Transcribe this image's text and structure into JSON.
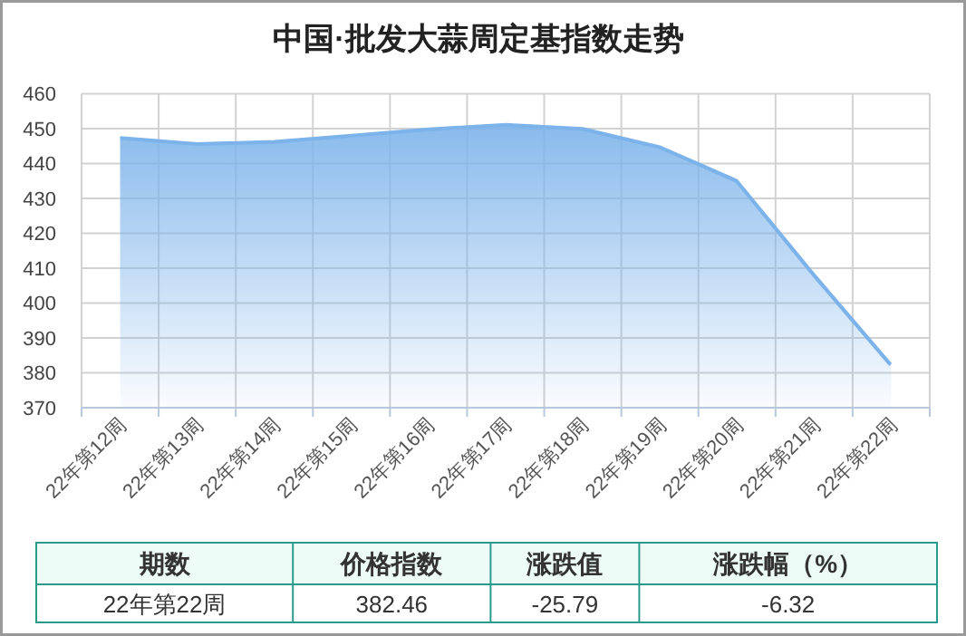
{
  "chart_data": {
    "type": "area",
    "title": "中国·批发大蒜周定基指数走势",
    "categories": [
      "22年第12周",
      "22年第13周",
      "22年第14周",
      "22年第15周",
      "22年第16周",
      "22年第17周",
      "22年第18周",
      "22年第19周",
      "22年第20周",
      "22年第21周",
      "22年第22周"
    ],
    "values": [
      447.5,
      445.8,
      446.4,
      448.2,
      450.0,
      451.3,
      450.1,
      444.9,
      435.2,
      408.3,
      382.46
    ],
    "color": "#7cb3ea",
    "ylim": [
      370,
      460
    ],
    "yticks": [
      370,
      380,
      390,
      400,
      410,
      420,
      430,
      440,
      450,
      460
    ],
    "grid": true,
    "annotations": [
      "期数",
      "价格指数",
      "涨跌值",
      "涨跌幅（%）",
      "22年第22周",
      "382.46",
      "-25.79",
      "-6.32"
    ]
  }
}
